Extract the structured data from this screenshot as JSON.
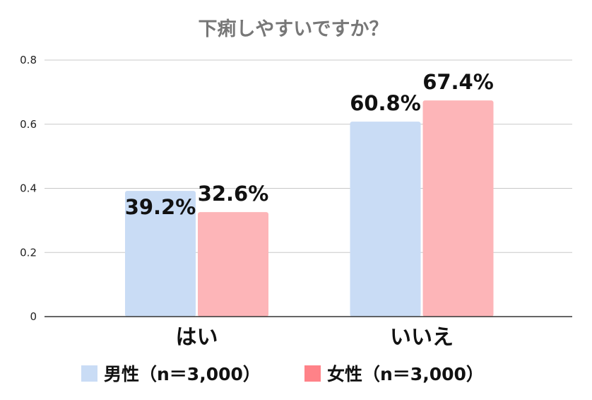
{
  "chart_data": {
    "type": "bar",
    "title": "下痢しやすいですか？",
    "categories": [
      "はい",
      "いいえ"
    ],
    "series": [
      {
        "name": "男性（n＝3,000）",
        "values": [
          0.392,
          0.608
        ],
        "labels": [
          "39.2%",
          "60.8%"
        ]
      },
      {
        "name": "女性（n＝3,000）",
        "values": [
          0.326,
          0.674
        ],
        "labels": [
          "32.6%",
          "67.4%"
        ]
      }
    ],
    "yticks": [
      "0",
      "0.2",
      "0.4",
      "0.6",
      "0.8"
    ],
    "ytick_values": [
      0,
      0.2,
      0.4,
      0.6,
      0.8
    ],
    "ylim": [
      0,
      0.8
    ],
    "xlabel": "",
    "ylabel": "",
    "grid": true,
    "legend_position": "bottom"
  },
  "colors": {
    "male_bar": "#c9dcf5",
    "female_bar": "#fdb5b8",
    "male_legend": "#c9dcf5",
    "female_legend": "#ff8288",
    "grid": "#c8c8c8",
    "axis": "#333333"
  }
}
